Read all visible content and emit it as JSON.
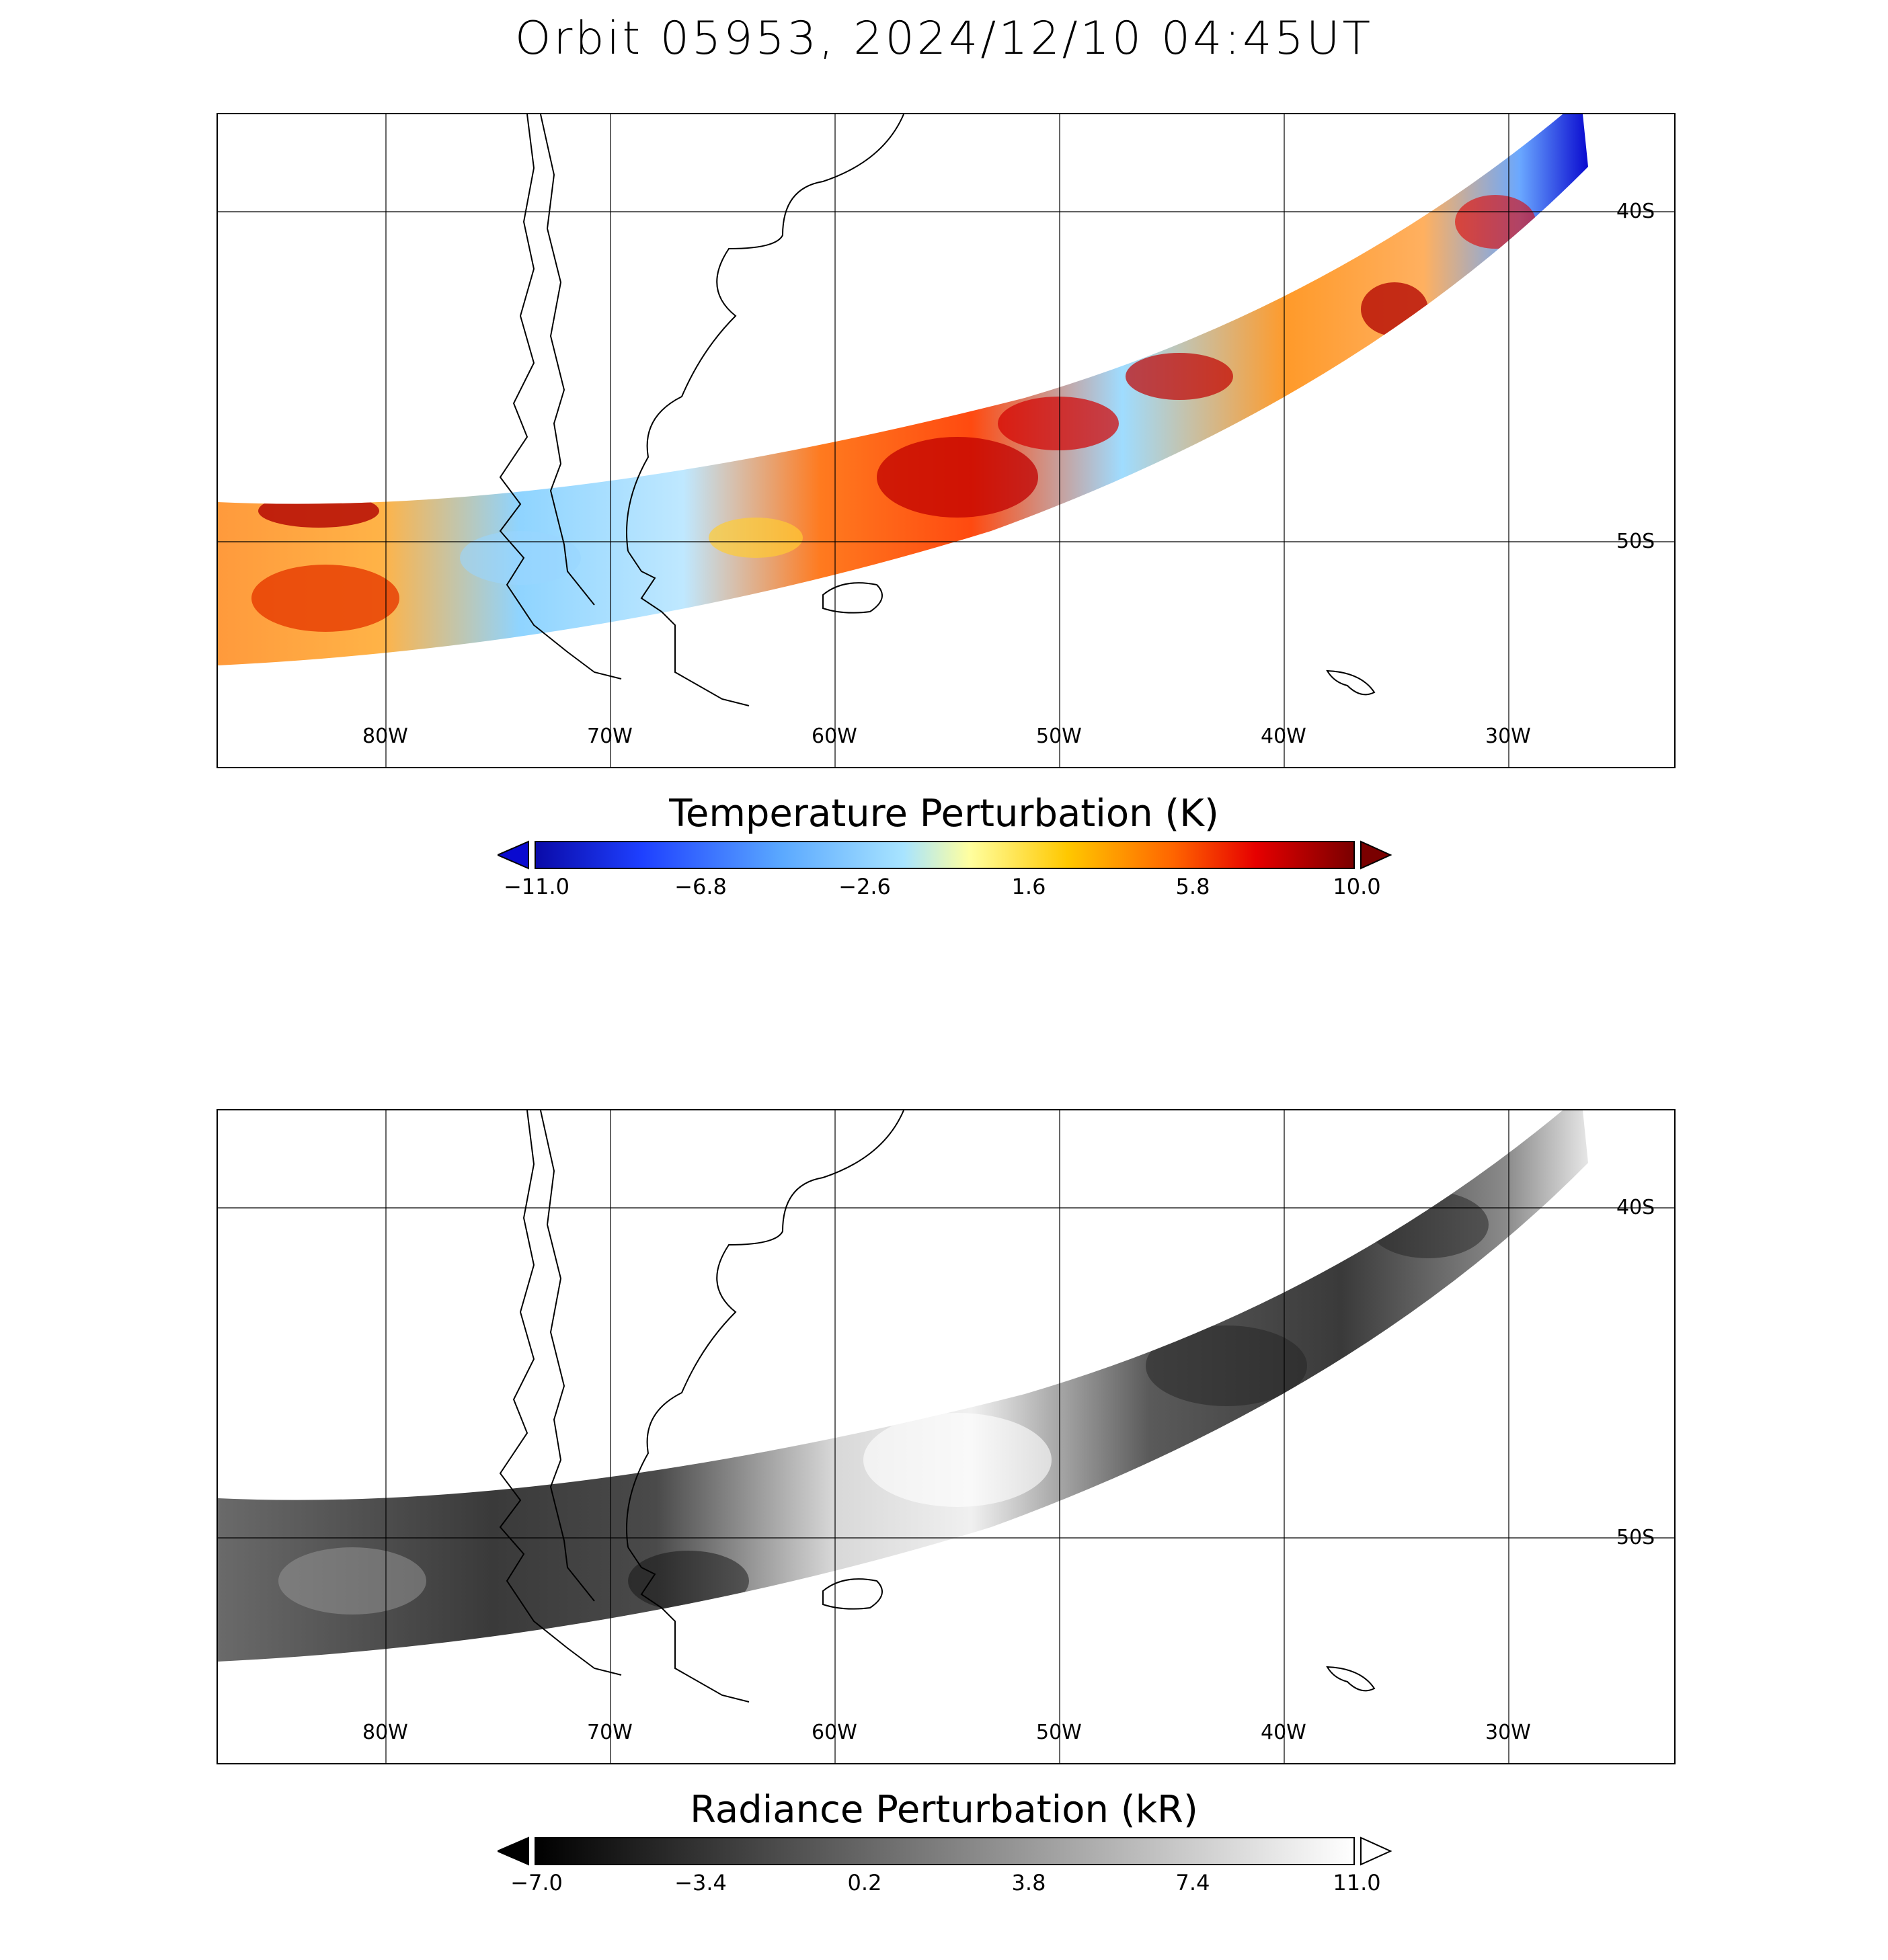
{
  "title": "Orbit 05953, 2024/12/10 04:45UT",
  "map": {
    "lon_ticks": [
      "80W",
      "70W",
      "60W",
      "50W",
      "40W",
      "30W"
    ],
    "lat_ticks": [
      "40S",
      "50S"
    ],
    "lon_values": [
      -80,
      -70,
      -60,
      -50,
      -40,
      -30
    ],
    "lat_values": [
      -40,
      -50
    ],
    "lon_range": [
      -87.5,
      -22.5
    ],
    "lat_range": [
      -37,
      -57
    ]
  },
  "panels": {
    "top": {
      "colorbar_title": "Temperature Perturbation (K)",
      "colorbar_labels": [
        "−11.0",
        "−6.8",
        "−2.6",
        "1.6",
        "5.8",
        "10.0"
      ],
      "range": [
        -11.0,
        10.0
      ],
      "colormap": [
        "#0a0aa8",
        "#1e40ff",
        "#5aa8ff",
        "#a8e4ff",
        "#ffffa0",
        "#ffc800",
        "#ff6400",
        "#e60000",
        "#7a0000"
      ]
    },
    "bottom": {
      "colorbar_title": "Radiance Perturbation (kR)",
      "colorbar_labels": [
        "−7.0",
        "−3.4",
        "0.2",
        "3.8",
        "7.4",
        "11.0"
      ],
      "range": [
        -7.0,
        11.0
      ],
      "colormap": [
        "#000000",
        "#ffffff"
      ]
    }
  }
}
